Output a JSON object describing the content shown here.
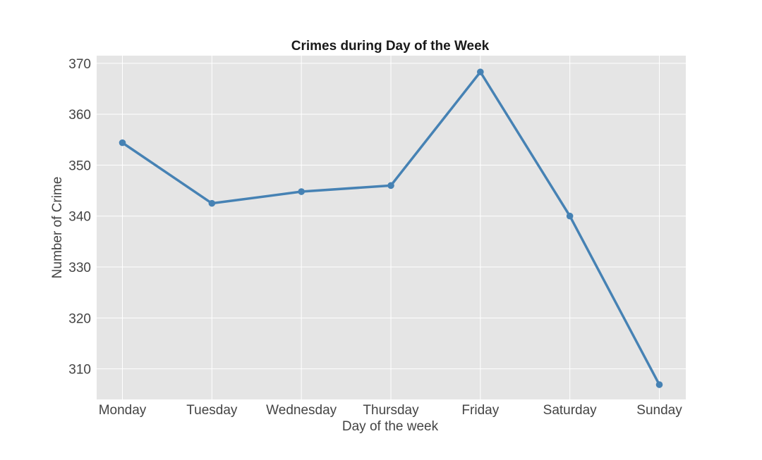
{
  "chart_data": {
    "type": "line",
    "title": "Crimes during Day of the Week",
    "xlabel": "Day of the week",
    "ylabel": "Number of Crime",
    "categories": [
      "Monday",
      "Tuesday",
      "Wednesday",
      "Thursday",
      "Friday",
      "Saturday",
      "Sunday"
    ],
    "series": [
      {
        "values": [
          354.4,
          342.5,
          344.8,
          346.0,
          368.3,
          340.0,
          306.9
        ]
      }
    ],
    "ylim": [
      304,
      371.5
    ],
    "yticks": [
      310,
      320,
      330,
      340,
      350,
      360,
      370
    ],
    "grid": true,
    "colors": {
      "line": "#4682b4",
      "plot_background": "#e5e5e5",
      "grid": "#ffffff"
    }
  }
}
